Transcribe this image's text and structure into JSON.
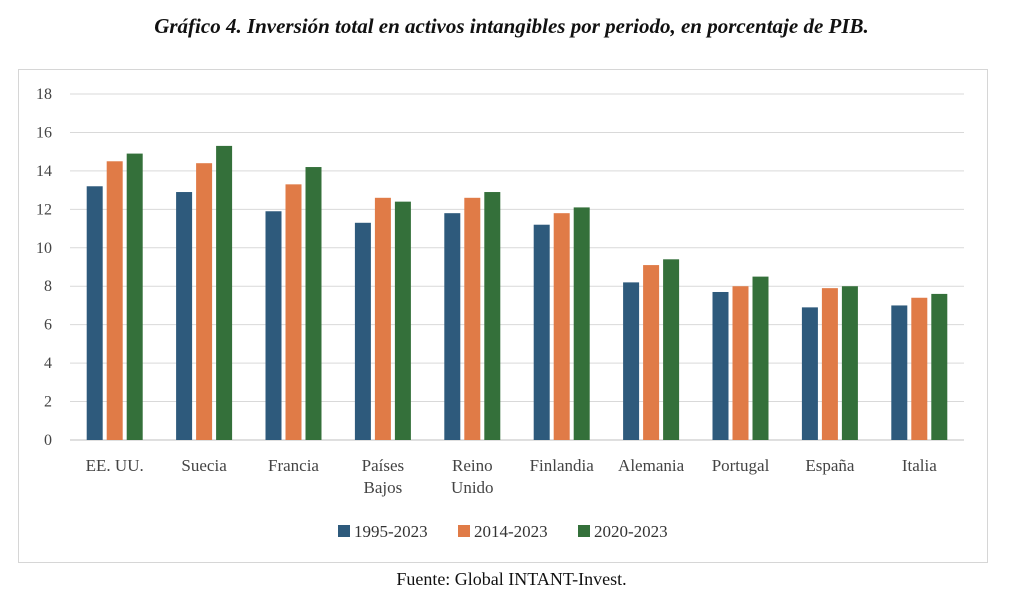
{
  "title": "Gráfico 4. Inversión total en activos intangibles por periodo, en porcentaje de PIB.",
  "source": "Fuente: Global INTANT-Invest.",
  "chart_data": {
    "type": "bar",
    "title": "",
    "xlabel": "",
    "ylabel": "",
    "ylim": [
      0,
      18
    ],
    "yticks": [
      0,
      2,
      4,
      6,
      8,
      10,
      12,
      14,
      16,
      18
    ],
    "grid": true,
    "legend_position": "bottom",
    "categories": [
      [
        "EE. UU."
      ],
      [
        "Suecia"
      ],
      [
        "Francia"
      ],
      [
        "Países",
        "Bajos"
      ],
      [
        "Reino",
        "Unido"
      ],
      [
        "Finlandia"
      ],
      [
        "Alemania"
      ],
      [
        "Portugal"
      ],
      [
        "España"
      ],
      [
        "Italia"
      ]
    ],
    "series": [
      {
        "name": "1995-2023",
        "color": "#2e5a7c",
        "values": [
          13.2,
          12.9,
          11.9,
          11.3,
          11.8,
          11.2,
          8.2,
          7.7,
          6.9,
          7.0
        ]
      },
      {
        "name": "2014-2023",
        "color": "#e07b47",
        "values": [
          14.5,
          14.4,
          13.3,
          12.6,
          12.6,
          11.8,
          9.1,
          8.0,
          7.9,
          7.4
        ]
      },
      {
        "name": "2020-2023",
        "color": "#34703a",
        "values": [
          14.9,
          15.3,
          14.2,
          12.4,
          12.9,
          12.1,
          9.4,
          8.5,
          8.0,
          7.6
        ]
      }
    ]
  }
}
